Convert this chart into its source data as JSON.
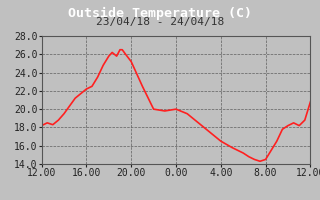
{
  "title": "Outside Temperature (C)",
  "subtitle": "23/04/18 - 24/04/18",
  "background_color": "#c0c0c0",
  "plot_bg_color": "#c0c0c0",
  "title_bar_color": "#1a1a1a",
  "line_color": "#ff2020",
  "line_width": 1.2,
  "ylim": [
    14.0,
    28.0
  ],
  "yticks": [
    14.0,
    16.0,
    18.0,
    20.0,
    22.0,
    24.0,
    26.0,
    28.0
  ],
  "xtick_labels": [
    "12.00",
    "16.00",
    "20.00",
    "0.00",
    "4.00",
    "8.00",
    "12.00"
  ],
  "title_fontsize": 9.5,
  "subtitle_fontsize": 8,
  "tick_fontsize": 7,
  "title_color": "white",
  "subtitle_color": "#333333",
  "tick_color": "#222222",
  "grid_color": "#555555",
  "x_hours": [
    0,
    0.5,
    1.0,
    1.5,
    2.0,
    3.0,
    4.0,
    4.5,
    5.0,
    5.5,
    6.0,
    6.3,
    6.7,
    7.0,
    7.2,
    7.5,
    8.0,
    9.0,
    10.0,
    11.0,
    12.0,
    13.0,
    14.0,
    15.0,
    16.0,
    17.0,
    18.0,
    18.5,
    19.0,
    19.5,
    20.0,
    20.5,
    21.0,
    21.5,
    22.0,
    22.5,
    23.0,
    23.5,
    24.0
  ],
  "y_temps": [
    18.2,
    18.5,
    18.3,
    18.8,
    19.5,
    21.2,
    22.2,
    22.5,
    23.5,
    24.8,
    25.8,
    26.2,
    25.8,
    26.5,
    26.5,
    26.0,
    25.2,
    22.5,
    20.0,
    19.8,
    20.0,
    19.5,
    18.5,
    17.5,
    16.5,
    15.8,
    15.2,
    14.8,
    14.5,
    14.3,
    14.5,
    15.5,
    16.5,
    17.8,
    18.2,
    18.5,
    18.2,
    18.8,
    20.8
  ]
}
